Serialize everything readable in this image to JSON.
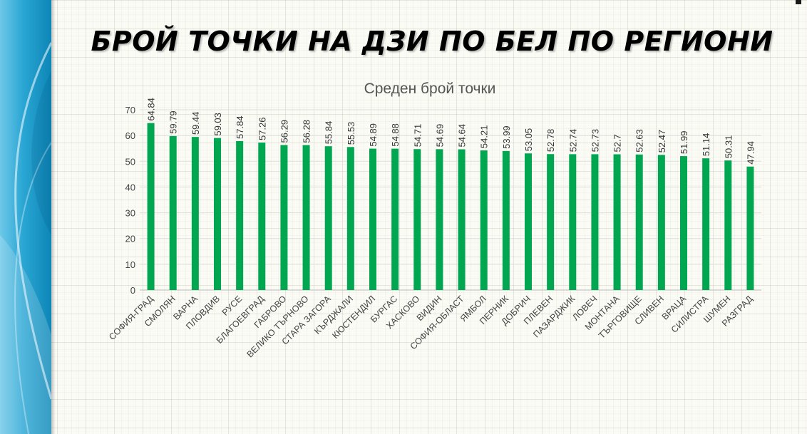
{
  "slide": {
    "title": "БРОЙ ТОЧКИ НА ДЗИ ПО БЕЛ ПО РЕГИОНИ",
    "side_band_color": "#2aa6d4"
  },
  "chart_data": {
    "type": "bar",
    "title": "Среден брой точки",
    "xlabel": "",
    "ylabel": "",
    "ylim": [
      0,
      70
    ],
    "yticks": [
      0,
      10,
      20,
      30,
      40,
      50,
      60,
      70
    ],
    "grid": true,
    "legend": "none",
    "bar_color": "#00a650",
    "categories": [
      "СОФИЯ-ГРАД",
      "СМОЛЯН",
      "ВАРНА",
      "ПЛОВДИВ",
      "РУСЕ",
      "БЛАГОЕВГРАД",
      "ГАБРОВО",
      "ВЕЛИКО ТЪРНОВО",
      "СТАРА ЗАГОРА",
      "КЪРДЖАЛИ",
      "КЮСТЕНДИЛ",
      "БУРГАС",
      "ХАСКОВО",
      "ВИДИН",
      "СОФИЯ-ОБЛАСТ",
      "ЯМБОЛ",
      "ПЕРНИК",
      "ДОБРИЧ",
      "ПЛЕВЕН",
      "ПАЗАРДЖИК",
      "ЛОВЕЧ",
      "МОНТАНА",
      "ТЪРГОВИЩЕ",
      "СЛИВЕН",
      "ВРАЦА",
      "СИЛИСТРА",
      "ШУМЕН",
      "РАЗГРАД"
    ],
    "values": [
      64.84,
      59.79,
      59.44,
      59.03,
      57.84,
      57.26,
      56.29,
      56.28,
      55.84,
      55.53,
      54.89,
      54.88,
      54.71,
      54.69,
      54.64,
      54.21,
      53.99,
      53.05,
      52.78,
      52.74,
      52.73,
      52.7,
      52.63,
      52.47,
      51.99,
      51.14,
      50.31,
      47.94
    ],
    "value_labels": [
      "64.84",
      "59.79",
      "59.44",
      "59.03",
      "57.84",
      "57.26",
      "56.29",
      "56.28",
      "55.84",
      "55.53",
      "54.89",
      "54.88",
      "54.71",
      "54.69",
      "54.64",
      "54.21",
      "53.99",
      "53.05",
      "52.78",
      "52.74",
      "52.73",
      "52.7",
      "52.63",
      "52.47",
      "51.99",
      "51.14",
      "50.31",
      "47.94"
    ]
  }
}
